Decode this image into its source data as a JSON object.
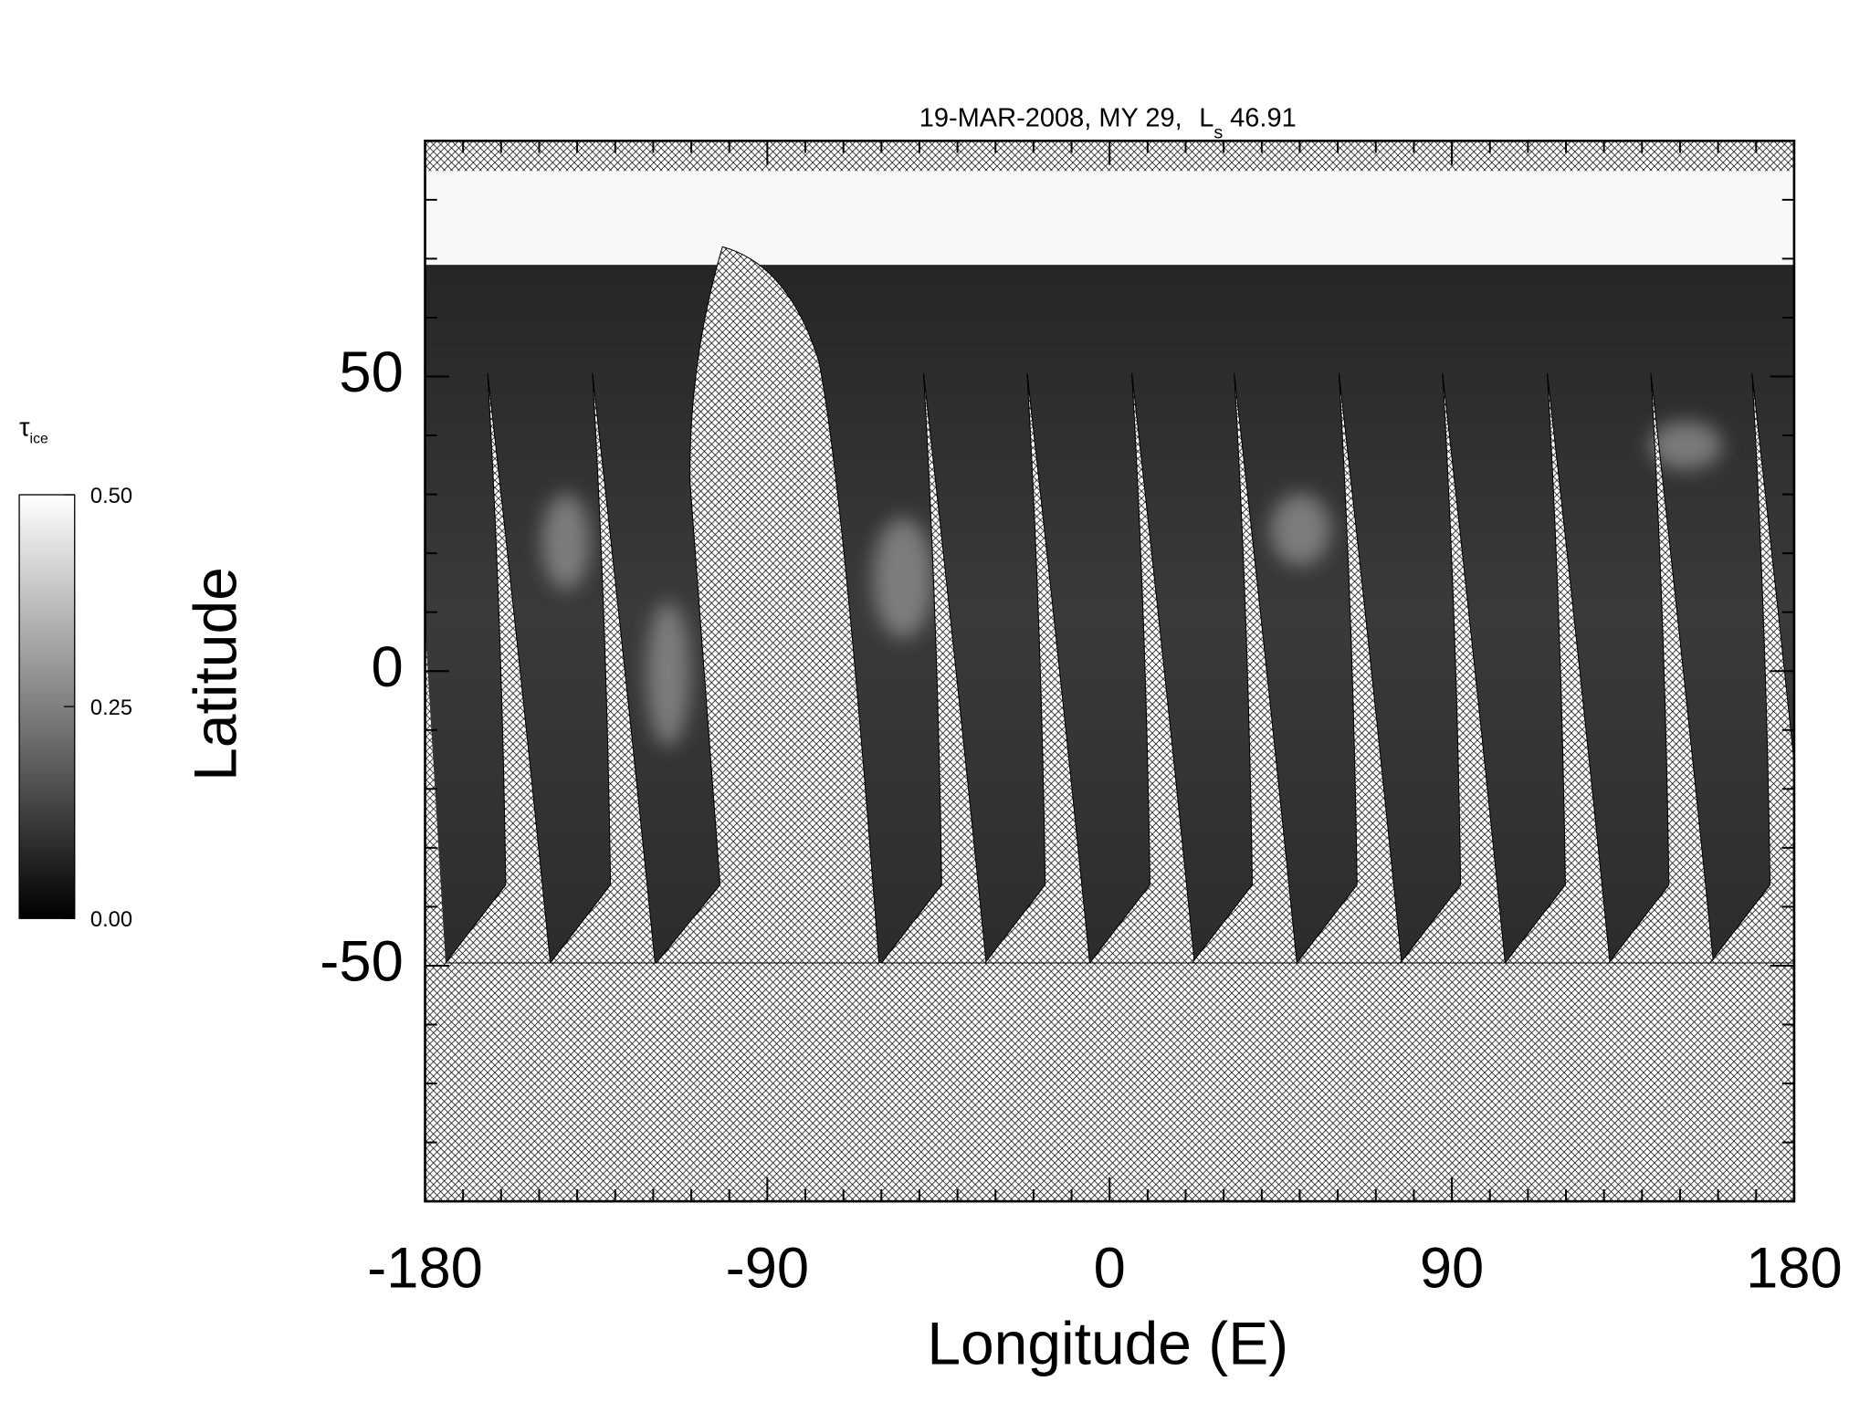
{
  "chart_data": {
    "type": "map",
    "title": [
      "19-MAR-2008, MY 29,",
      "L",
      "s",
      "46.91"
    ],
    "xlabel": "Longitude (E)",
    "ylabel": "Latitude",
    "xlim": [
      -180,
      180
    ],
    "xticks": [
      -180,
      -90,
      0,
      90,
      180
    ],
    "xminorticks": [
      -170,
      -160,
      -150,
      -140,
      -130,
      -120,
      -110,
      -100,
      -80,
      -70,
      -60,
      -50,
      -40,
      -30,
      -20,
      -10,
      10,
      20,
      30,
      40,
      50,
      60,
      70,
      80,
      100,
      110,
      120,
      130,
      140,
      150,
      160,
      170
    ],
    "ylim": [
      -90,
      90
    ],
    "yticks": [
      -50,
      0,
      50
    ],
    "yminorticks": [
      -80,
      -70,
      -60,
      -40,
      -30,
      -20,
      -10,
      10,
      20,
      30,
      40,
      60,
      70,
      80
    ],
    "colorbar": {
      "label": [
        "τ",
        "ice"
      ],
      "lim": [
        0,
        0.5
      ],
      "ticks": [
        {
          "value": 0,
          "label": "0.00"
        },
        {
          "value": 0.25,
          "label": "0.25"
        },
        {
          "value": 0.5,
          "label": "0.50"
        }
      ]
    }
  }
}
